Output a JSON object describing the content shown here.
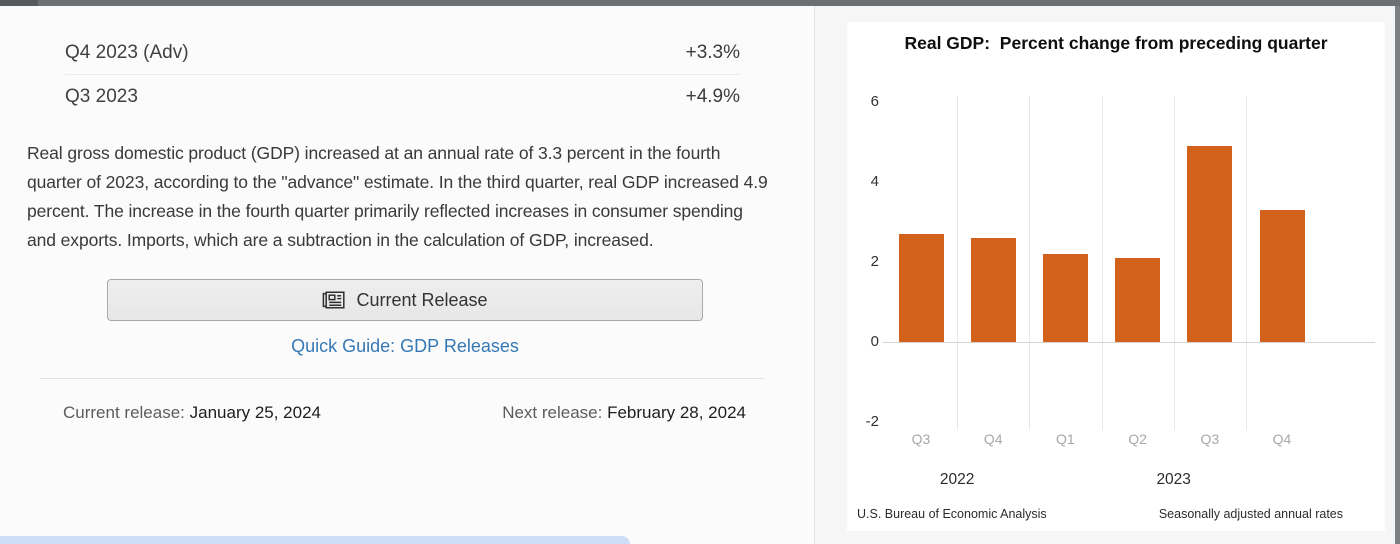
{
  "release_table": {
    "rows": [
      {
        "label": "Q4 2023 (Adv)",
        "value": "+3.3%"
      },
      {
        "label": "Q3 2023",
        "value": "+4.9%"
      }
    ]
  },
  "summary": "Real gross domestic product (GDP) increased at an annual rate of 3.3 percent in the fourth quarter of 2023, according to the \"advance\" estimate. In the third quarter, real GDP increased 4.9 percent. The increase in the fourth quarter primarily reflected increases in consumer spending and exports. Imports, which are a subtraction in the calculation of GDP, increased.",
  "actions": {
    "current_release_button": "Current Release",
    "quick_guide_link": "Quick Guide: GDP Releases"
  },
  "release_info": {
    "current_label": "Current release: ",
    "current_date": "January 25, 2024",
    "next_label": "Next release: ",
    "next_date": "February 28, 2024"
  },
  "chart_data": {
    "type": "bar",
    "title": "Real GDP:  Percent change from preceding quarter",
    "categories": [
      "Q3",
      "Q4",
      "Q1",
      "Q2",
      "Q3",
      "Q4"
    ],
    "values": [
      2.7,
      2.6,
      2.2,
      2.1,
      4.9,
      3.3
    ],
    "year_groups": [
      {
        "label": "2022",
        "quarters": 2
      },
      {
        "label": "2023",
        "quarters": 4
      }
    ],
    "ylim": [
      -2,
      6
    ],
    "yticks": [
      6,
      4,
      2,
      0,
      -2
    ],
    "grid": "vertical",
    "legend": "none",
    "bar_color": "#d2611c",
    "source_left": "U.S. Bureau of Economic Analysis",
    "source_right": "Seasonally adjusted annual rates"
  },
  "colors": {
    "bar_orange": "#d2611c",
    "link_blue": "#3578b5",
    "topbar_gray": "#6d7073",
    "scroll_thumb_blue": "#cdddf6"
  }
}
